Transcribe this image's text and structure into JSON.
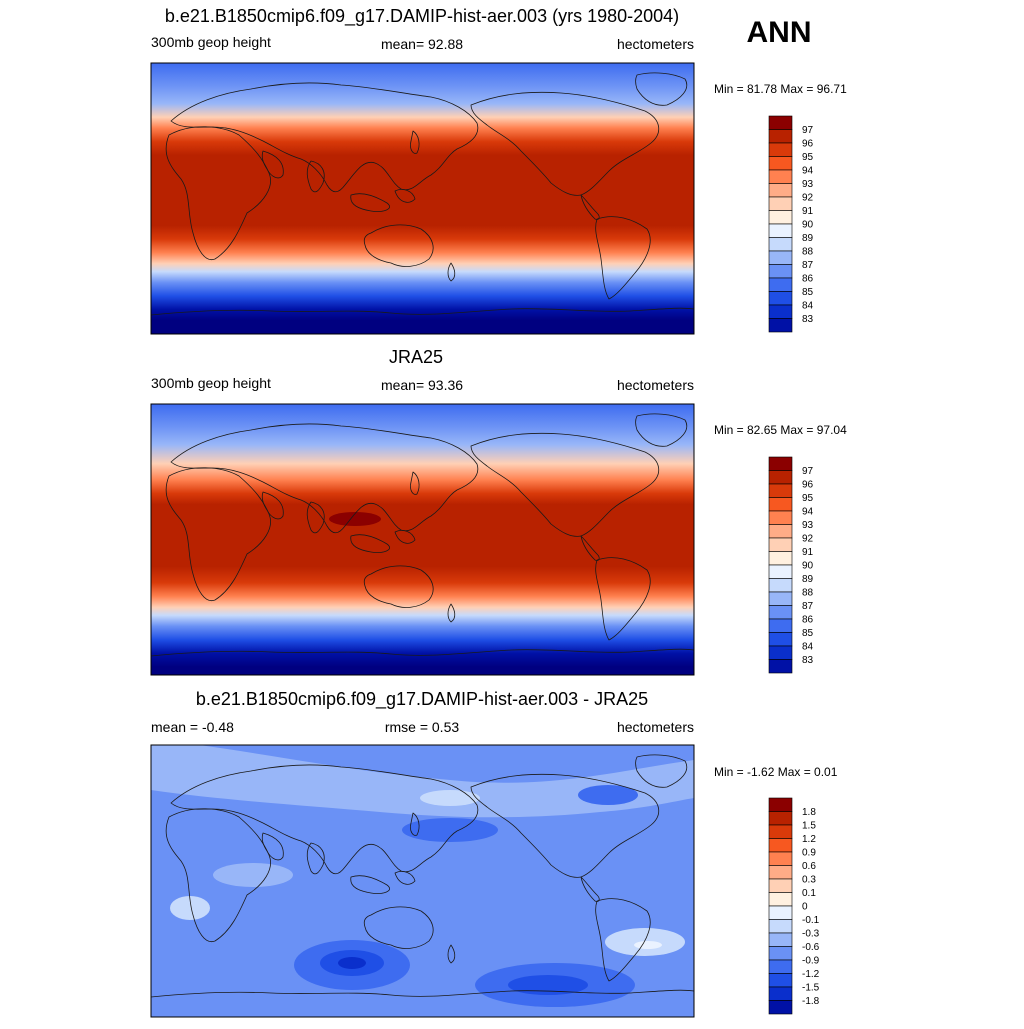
{
  "season": "ANN",
  "panels": [
    {
      "title": "b.e21.B1850cmip6.f09_g17.DAMIP-hist-aer.003 (yrs 1980-2004)",
      "left_label": "300mb geop height",
      "center_label": "mean=  92.88",
      "right_label": "hectometers",
      "minmax_label": "Min =  81.78 Max =  96.71",
      "colorbar": {
        "labels": [
          "97",
          "96",
          "95",
          "94",
          "93",
          "92",
          "91",
          "90",
          "89",
          "88",
          "87",
          "86",
          "85",
          "84",
          "83"
        ]
      }
    },
    {
      "title": "JRA25",
      "left_label": "300mb geop height",
      "center_label": "mean=  93.36",
      "right_label": "hectometers",
      "minmax_label": "Min =  82.65 Max =  97.04",
      "colorbar": {
        "labels": [
          "97",
          "96",
          "95",
          "94",
          "93",
          "92",
          "91",
          "90",
          "89",
          "88",
          "87",
          "86",
          "85",
          "84",
          "83"
        ]
      }
    },
    {
      "title": "b.e21.B1850cmip6.f09_g17.DAMIP-hist-aer.003 - JRA25",
      "left_label": "mean =  -0.48",
      "center_label": "rmse =   0.53",
      "right_label": "hectometers",
      "minmax_label": "Min =  -1.62 Max =   0.01",
      "colorbar": {
        "labels": [
          "1.8",
          "1.5",
          "1.2",
          "0.9",
          "0.6",
          "0.3",
          "0.1",
          "0",
          "-0.1",
          "-0.3",
          "-0.6",
          "-0.9",
          "-1.2",
          "-1.5",
          "-1.8"
        ]
      }
    }
  ],
  "chart_data": [
    {
      "type": "heatmap",
      "title": "b.e21.B1850cmip6.f09_g17.DAMIP-hist-aer.003 (yrs 1980-2004)",
      "variable": "300mb geop height",
      "units": "hectometers",
      "mean": 92.88,
      "min": 81.78,
      "max": 96.71,
      "contour_levels": [
        83,
        84,
        85,
        86,
        87,
        88,
        89,
        90,
        91,
        92,
        93,
        94,
        95,
        96,
        97
      ],
      "colors": [
        "#000080",
        "#0011A6",
        "#0A2FCC",
        "#1F4FE6",
        "#3E6CF0",
        "#6A91F5",
        "#98B6F8",
        "#C6DAFC",
        "#EAF2FF",
        "#FFF0E0",
        "#FFD0B5",
        "#FFAC87",
        "#FF8150",
        "#F75820",
        "#D93A0A",
        "#B82200",
        "#8B0000"
      ]
    },
    {
      "type": "heatmap",
      "title": "JRA25",
      "variable": "300mb geop height",
      "units": "hectometers",
      "mean": 93.36,
      "min": 82.65,
      "max": 97.04,
      "contour_levels": [
        83,
        84,
        85,
        86,
        87,
        88,
        89,
        90,
        91,
        92,
        93,
        94,
        95,
        96,
        97
      ],
      "colors": [
        "#000080",
        "#0011A6",
        "#0A2FCC",
        "#1F4FE6",
        "#3E6CF0",
        "#6A91F5",
        "#98B6F8",
        "#C6DAFC",
        "#EAF2FF",
        "#FFF0E0",
        "#FFD0B5",
        "#FFAC87",
        "#FF8150",
        "#F75820",
        "#D93A0A",
        "#B82200",
        "#8B0000"
      ]
    },
    {
      "type": "heatmap",
      "title": "b.e21.B1850cmip6.f09_g17.DAMIP-hist-aer.003 - JRA25",
      "variable": "",
      "units": "hectometers",
      "mean": -0.48,
      "rmse": 0.53,
      "min": -1.62,
      "max": 0.01,
      "contour_levels": [
        -1.8,
        -1.5,
        -1.2,
        -0.9,
        -0.6,
        -0.3,
        -0.1,
        0,
        0.1,
        0.3,
        0.6,
        0.9,
        1.2,
        1.5,
        1.8
      ],
      "colors": [
        "#000080",
        "#0011A6",
        "#0A2FCC",
        "#1F4FE6",
        "#3E6CF0",
        "#6A91F5",
        "#98B6F8",
        "#C6DAFC",
        "#EAF2FF",
        "#FFF0E0",
        "#FFD0B5",
        "#FFAC87",
        "#FF8150",
        "#F75820",
        "#D93A0A",
        "#B82200",
        "#8B0000"
      ]
    }
  ]
}
